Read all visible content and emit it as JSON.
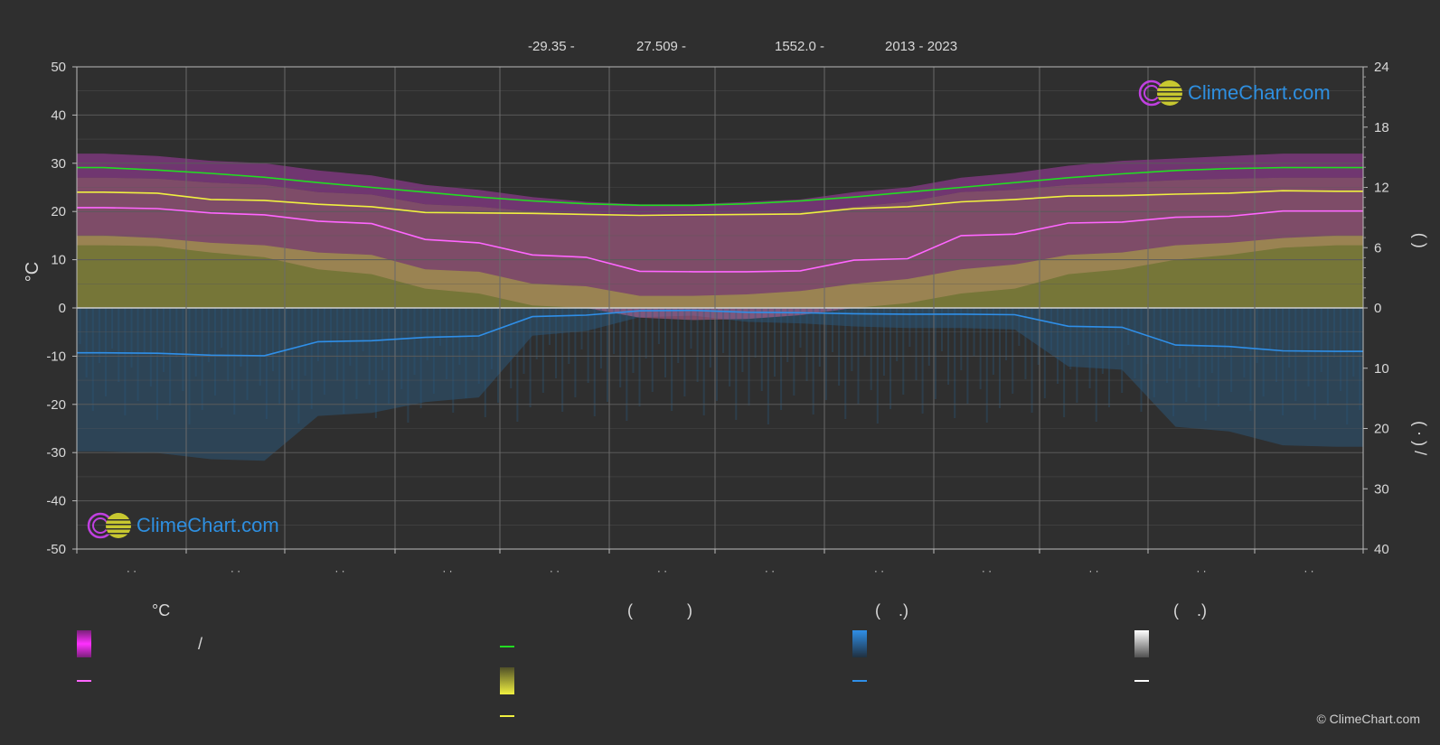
{
  "header": {
    "lat": "-29.35 -",
    "lon": "27.509 -",
    "elev": "1552.0 -",
    "years": "2013 - 2023"
  },
  "colors": {
    "background": "#2f2f2f",
    "grid": "#5a5a5a",
    "zero_line": "#cfcfcf",
    "max_temp": "#c040c0",
    "temp_band": "#e070b0",
    "sunshine_band": "#b0b040",
    "precip_band": "#2a6ea0",
    "daylight": "#22dd22",
    "sunshine": "#f0f040",
    "avg_temp": "#ff66ff",
    "precip": "#2f8fe8",
    "snow": "#ffffff",
    "logo_text": "#2e8fe0"
  },
  "logo_top": {
    "text": "ClimeChart.com"
  },
  "logo_bottom": {
    "text": "ClimeChart.com"
  },
  "copyright": "© ClimeChart.com",
  "legend": {
    "col1_header": "°C",
    "col1_row1": "/",
    "col2_header": "(            )",
    "col3_header": "(    .)",
    "col4_header": "(    .)"
  },
  "chart_data": {
    "type": "line",
    "x": [
      1,
      2,
      3,
      4,
      5,
      6,
      7,
      8,
      9,
      10,
      11,
      12,
      13,
      14,
      15,
      16,
      17,
      18,
      19,
      20,
      21,
      22,
      23,
      24
    ],
    "x_tick_labels": [
      "· ·",
      "· ·",
      "· ·",
      "· ·",
      "· ·",
      "· ·",
      "· ·",
      "· ·",
      "· ·",
      "· ·",
      "· ·",
      "· ·"
    ],
    "ylabel_left": "°C",
    "ylim_left": [
      -50,
      50
    ],
    "yticks_left": [
      50,
      40,
      30,
      20,
      10,
      0,
      -10,
      -20,
      -30,
      -40,
      -50
    ],
    "yticks_right_top": [
      24,
      18,
      12,
      6,
      0
    ],
    "yticks_right_bottom": [
      10,
      20,
      30,
      40
    ],
    "right_top_label": "(        )",
    "right_bottom_label": "(  ·  )    /",
    "grid": true,
    "series": [
      {
        "key": "daylight",
        "values": [
          29.1,
          28.6,
          27.9,
          27.1,
          26.0,
          25.0,
          24.0,
          23.0,
          22.2,
          21.6,
          21.3,
          21.3,
          21.6,
          22.2,
          23.0,
          24.0,
          25.0,
          26.0,
          27.0,
          27.8,
          28.5,
          28.9,
          29.1,
          29.1
        ]
      },
      {
        "key": "sunshine",
        "values": [
          24.0,
          23.8,
          22.5,
          22.3,
          21.5,
          21.0,
          19.8,
          19.7,
          19.6,
          19.4,
          19.2,
          19.3,
          19.4,
          19.5,
          20.6,
          21.0,
          22.0,
          22.5,
          23.2,
          23.3,
          23.6,
          23.8,
          24.3,
          24.2
        ]
      },
      {
        "key": "avg_temp",
        "values": [
          20.8,
          20.6,
          19.7,
          19.3,
          18.0,
          17.5,
          14.2,
          13.5,
          11.0,
          10.5,
          7.6,
          7.5,
          7.5,
          7.7,
          9.9,
          10.2,
          15.0,
          15.3,
          17.6,
          17.8,
          18.8,
          19.0,
          20.1,
          20.1
        ]
      },
      {
        "key": "precip",
        "values": [
          -9.3,
          -9.4,
          -9.8,
          -9.9,
          -7.0,
          -6.8,
          -6.1,
          -5.8,
          -1.8,
          -1.5,
          -0.6,
          -0.5,
          -0.9,
          -1.0,
          -1.2,
          -1.3,
          -1.3,
          -1.4,
          -3.8,
          -4.0,
          -7.7,
          -8.0,
          -8.9,
          -9.0
        ]
      }
    ],
    "bands": {
      "max_temp_top": [
        32,
        31.5,
        30.5,
        30,
        28.5,
        27.5,
        25.5,
        24.5,
        23,
        22,
        21.5,
        21.5,
        22,
        22.5,
        24,
        25,
        27,
        28,
        29.5,
        30.5,
        31,
        31.5,
        32,
        32
      ],
      "temp_top": [
        27,
        26.8,
        26,
        25.5,
        24,
        23.5,
        21.5,
        21,
        20,
        19.5,
        19,
        19,
        19.3,
        19.8,
        21,
        22,
        24,
        24.5,
        25.5,
        26,
        26.5,
        26.8,
        27,
        27
      ],
      "temp_bottom": [
        13,
        12.8,
        11.5,
        10.5,
        8,
        7,
        4,
        3,
        0.5,
        0,
        -2,
        -2.5,
        -2.3,
        -1.5,
        0,
        1,
        3,
        4,
        7,
        8,
        10,
        11,
        12.5,
        13
      ],
      "sun_top": [
        15,
        14.5,
        13.5,
        13,
        11.5,
        11,
        8,
        7.5,
        5,
        4.5,
        2.5,
        2.5,
        2.8,
        3.5,
        5,
        6,
        8,
        9,
        11,
        11.5,
        13,
        13.5,
        14.5,
        15
      ]
    }
  }
}
